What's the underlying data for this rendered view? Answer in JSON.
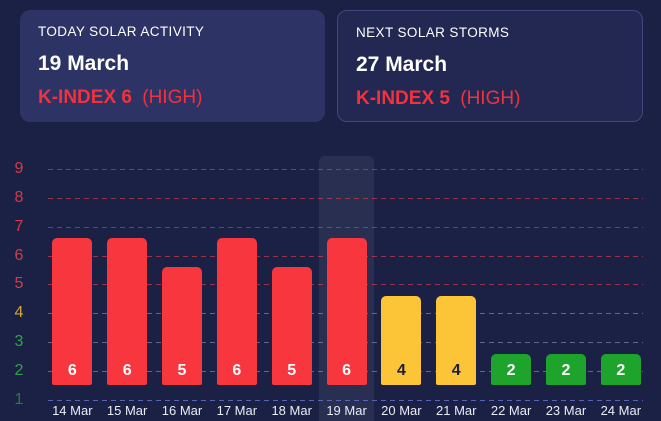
{
  "cards": [
    {
      "title": "TODAY SOLAR ACTIVITY",
      "date": "19 March",
      "kindex": "K-INDEX 6",
      "level": "(HIGH)"
    },
    {
      "title": "NEXT SOLAR STORMS",
      "date": "27 March",
      "kindex": "K-INDEX 5",
      "level": "(HIGH)"
    }
  ],
  "chart_data": {
    "type": "bar",
    "categories": [
      "14 Mar",
      "15 Mar",
      "16 Mar",
      "17 Mar",
      "18 Mar",
      "19 Mar",
      "20 Mar",
      "21 Mar",
      "22 Mar",
      "23 Mar",
      "24 Mar"
    ],
    "values": [
      6,
      6,
      5,
      6,
      5,
      6,
      4,
      4,
      2,
      2,
      2
    ],
    "highlighted_category": "19 Mar",
    "ylim": [
      1,
      9
    ],
    "yticks": [
      9,
      8,
      7,
      6,
      5,
      4,
      3,
      2,
      1
    ],
    "grid": true,
    "legend": false,
    "ytick_colors": {
      "9": "#d63a4a",
      "8": "#d63a4a",
      "7": "#d63a4a",
      "6": "#d63a4a",
      "5": "#d63a4a",
      "4": "#d9a43c",
      "3": "#2fa348",
      "2": "#2fa348",
      "1": "#267f37"
    }
  },
  "colors": {
    "page_bg": "#1b2144",
    "card_bg": "#2d3364",
    "card2_bg": "#222852",
    "card2_border": "#3f477c",
    "text_primary": "#ffffff",
    "alert_red": "#f1313e",
    "bar_high": "#f8363e",
    "bar_moderate": "#fcc437",
    "bar_low": "#1ea42c",
    "bar_value_light": "#ffffff",
    "bar_value_dark": "#191e3a",
    "axis_text": "#e9ebf5",
    "grid_high": "rgba(240,62,78,0.6)",
    "grid_mid": "rgba(195,200,218,0.42)",
    "grid_base": "rgba(95,112,200,0.85)",
    "highlight_band": "rgba(205,215,248,0.08)"
  }
}
